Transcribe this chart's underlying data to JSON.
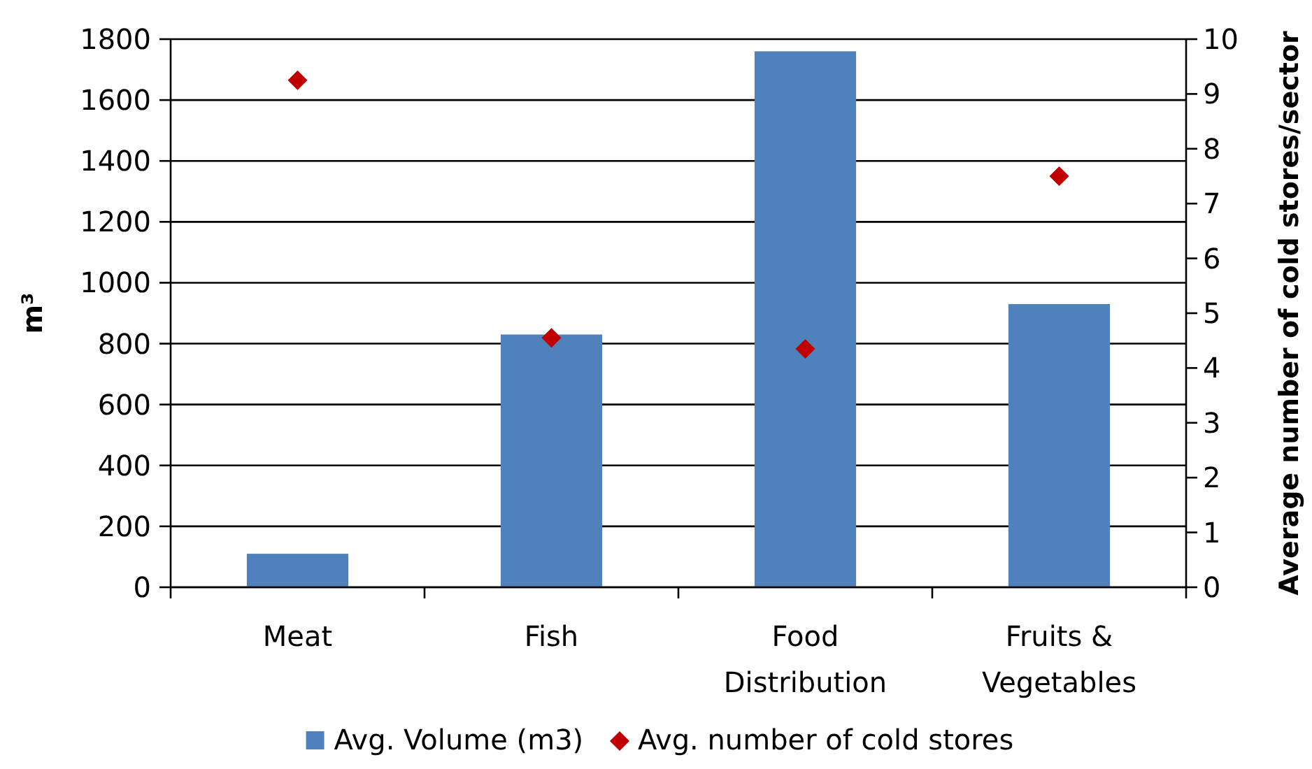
{
  "chart_data": {
    "type": "bar",
    "ylabel": "m³",
    "y2label": "Average number of cold stores/sector",
    "categories": [
      "Meat",
      "Fish",
      "Food Distribution",
      "Fruits & Vegetables"
    ],
    "series": [
      {
        "name": "Avg. Volume (m3)",
        "color": "#4f81bd",
        "values": [
          110,
          830,
          1760,
          930
        ]
      },
      {
        "name": "Avg. number of cold stores",
        "type": "scatter",
        "axis": "y2",
        "marker": "diamond",
        "color": "#c00000",
        "values": [
          9.25,
          4.55,
          4.35,
          7.5
        ]
      }
    ],
    "ylim": [
      0,
      1800
    ],
    "yticks": [
      0,
      200,
      400,
      600,
      800,
      1000,
      1200,
      1400,
      1600,
      1800
    ],
    "y2lim": [
      0,
      10
    ],
    "y2ticks": [
      0,
      1,
      2,
      3,
      4,
      5,
      6,
      7,
      8,
      9,
      10
    ],
    "grid": "y",
    "legend": "bottom"
  }
}
